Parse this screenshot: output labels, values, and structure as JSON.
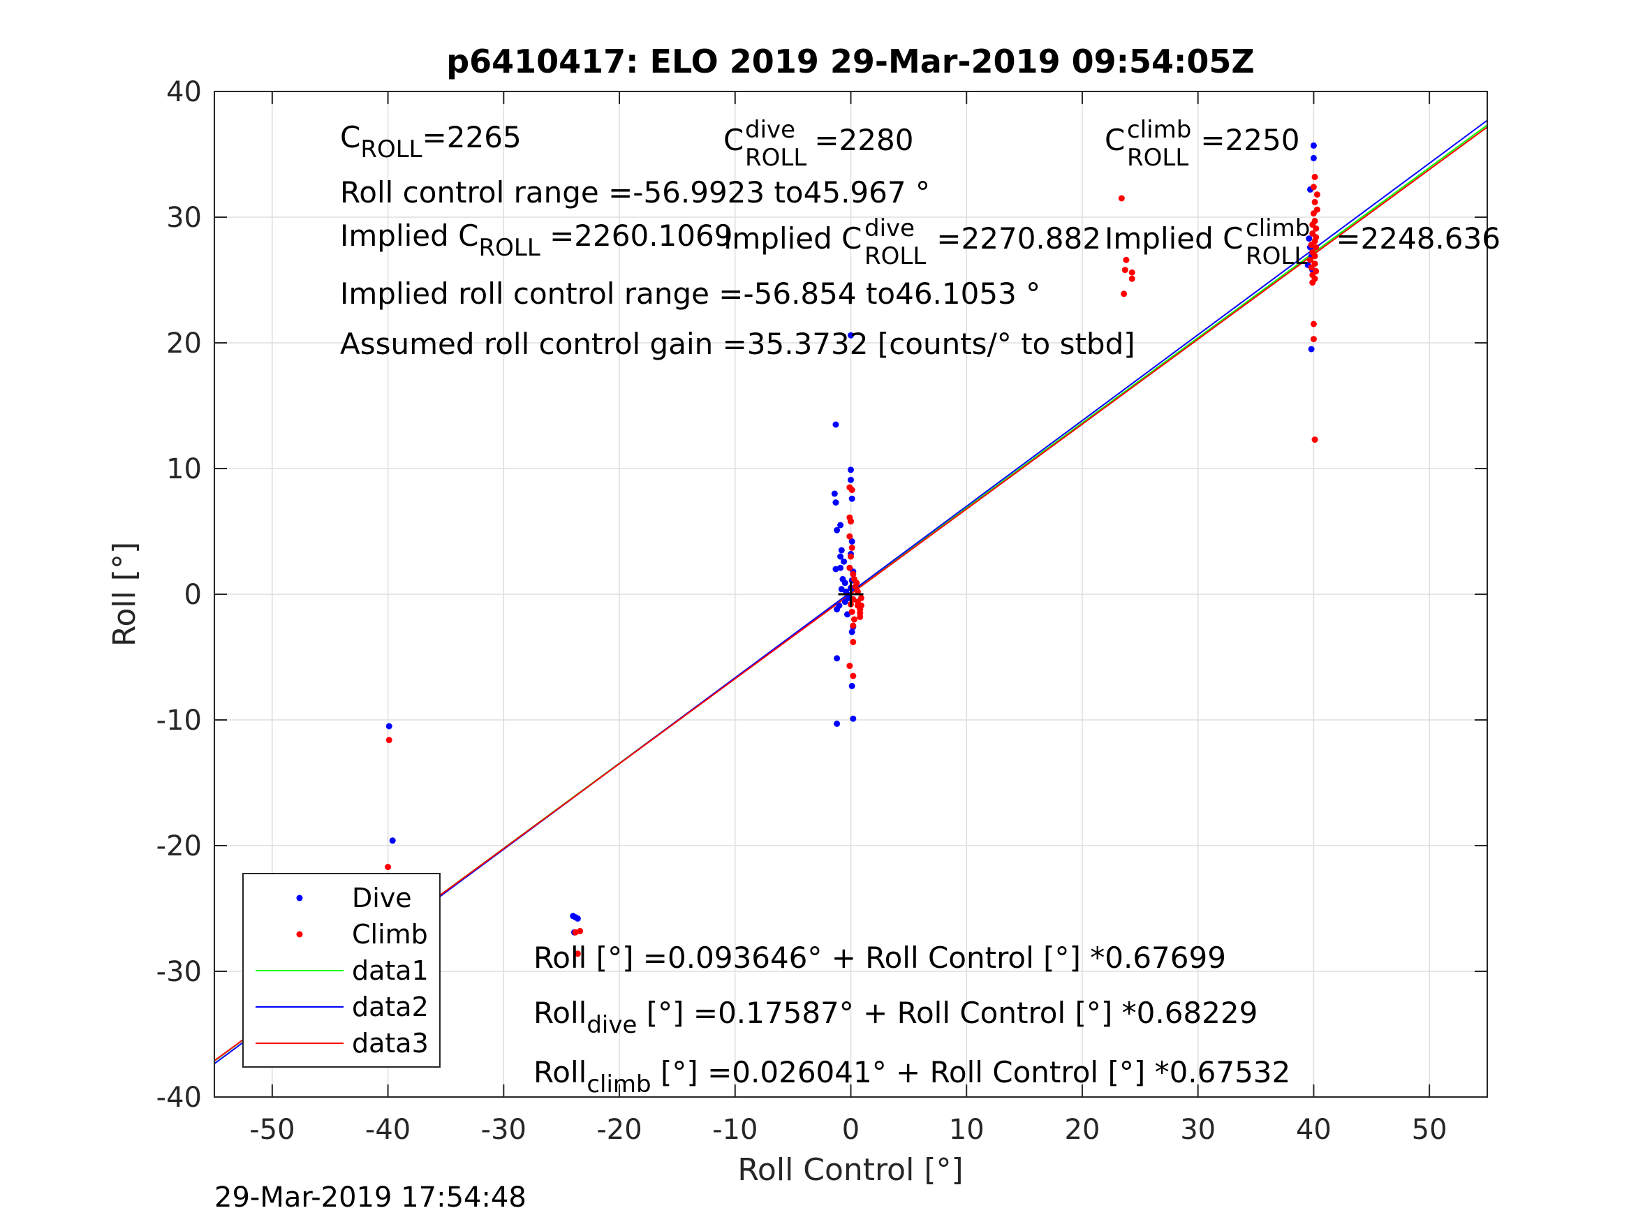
{
  "chart_data": {
    "type": "scatter",
    "title": "p6410417: ELO 2019 29-Mar-2019 09:54:05Z",
    "xlabel": "Roll Control [°]",
    "ylabel": "Roll [°]",
    "xlim": [
      -55,
      55
    ],
    "ylim": [
      -40,
      40
    ],
    "xticks": [
      "-50",
      "-40",
      "-30",
      "-20",
      "-10",
      "0",
      "10",
      "20",
      "30",
      "40",
      "50"
    ],
    "yticks": [
      "-40",
      "-30",
      "-20",
      "-10",
      "0",
      "10",
      "20",
      "30",
      "40"
    ],
    "grid": true,
    "legend": {
      "position": "bottom-left",
      "entries": [
        {
          "label": "Dive",
          "color": "#0000ff",
          "kind": "marker"
        },
        {
          "label": "Climb",
          "color": "#ff0000",
          "kind": "marker"
        },
        {
          "label": "data1",
          "color": "#00ff00",
          "kind": "line"
        },
        {
          "label": "data2",
          "color": "#0000ff",
          "kind": "line"
        },
        {
          "label": "data3",
          "color": "#ff0000",
          "kind": "line"
        }
      ]
    },
    "series": [
      {
        "name": "Dive",
        "kind": "scatter",
        "color": "#0000ff",
        "points": [
          [
            -39.9,
            -10.5
          ],
          [
            -39.6,
            -19.6
          ],
          [
            -39.9,
            -22.6
          ],
          [
            -39.8,
            -24.5
          ],
          [
            -39.7,
            -25.8
          ],
          [
            -39.6,
            -26.1
          ],
          [
            -39.8,
            -26.6
          ],
          [
            -39.6,
            -27.0
          ],
          [
            -39.7,
            -27.4
          ],
          [
            -39.6,
            -27.8
          ],
          [
            -24.0,
            -25.6
          ],
          [
            -23.8,
            -25.7
          ],
          [
            -23.6,
            -25.8
          ],
          [
            -23.9,
            -26.9
          ],
          [
            -1.3,
            13.5
          ],
          [
            -1.4,
            8.0
          ],
          [
            -1.3,
            7.3
          ],
          [
            -0.9,
            5.5
          ],
          [
            -1.2,
            5.1
          ],
          [
            -1.3,
            2.0
          ],
          [
            -0.9,
            2.1
          ],
          [
            -0.9,
            3.0
          ],
          [
            -0.8,
            3.5
          ],
          [
            -0.6,
            2.6
          ],
          [
            -0.7,
            1.2
          ],
          [
            -0.5,
            0.9
          ],
          [
            -0.8,
            0.4
          ],
          [
            -0.4,
            0.2
          ],
          [
            -0.2,
            -0.3
          ],
          [
            -0.5,
            -0.6
          ],
          [
            -1.0,
            -0.9
          ],
          [
            -1.2,
            -1.2
          ],
          [
            -0.3,
            -1.6
          ],
          [
            0.2,
            -2.6
          ],
          [
            0.1,
            -3.0
          ],
          [
            -1.2,
            -5.1
          ],
          [
            -1.2,
            -10.3
          ],
          [
            0.1,
            -7.3
          ],
          [
            0.2,
            -9.9
          ],
          [
            0.0,
            9.9
          ],
          [
            0.0,
            9.1
          ],
          [
            0.1,
            7.6
          ],
          [
            0.0,
            5.8
          ],
          [
            0.1,
            4.2
          ],
          [
            0.0,
            3.2
          ],
          [
            0.2,
            1.8
          ],
          [
            0.1,
            1.1
          ],
          [
            0.0,
            0.5
          ],
          [
            0.2,
            -0.4
          ],
          [
            0.0,
            20.6
          ],
          [
            40.0,
            35.7
          ],
          [
            40.0,
            34.7
          ],
          [
            39.7,
            32.2
          ],
          [
            39.6,
            28.3
          ],
          [
            39.7,
            27.6
          ],
          [
            39.8,
            26.9
          ],
          [
            39.5,
            26.2
          ],
          [
            39.9,
            25.8
          ],
          [
            39.8,
            19.5
          ]
        ]
      },
      {
        "name": "Climb",
        "kind": "scatter",
        "color": "#ff0000",
        "points": [
          [
            -39.9,
            -11.6
          ],
          [
            -40.0,
            -21.7
          ],
          [
            -39.8,
            -23.0
          ],
          [
            -39.7,
            -24.5
          ],
          [
            -39.5,
            -25.2
          ],
          [
            -39.6,
            -26.4
          ],
          [
            -23.8,
            -26.9
          ],
          [
            -23.4,
            -26.8
          ],
          [
            -23.6,
            -28.6
          ],
          [
            -0.1,
            8.5
          ],
          [
            0.1,
            8.3
          ],
          [
            -0.1,
            6.1
          ],
          [
            0.0,
            5.8
          ],
          [
            -0.1,
            4.6
          ],
          [
            0.1,
            3.7
          ],
          [
            0.0,
            3.0
          ],
          [
            -0.1,
            2.1
          ],
          [
            0.2,
            1.6
          ],
          [
            0.3,
            1.2
          ],
          [
            0.4,
            0.6
          ],
          [
            0.6,
            0.2
          ],
          [
            0.2,
            -0.4
          ],
          [
            0.0,
            -0.8
          ],
          [
            0.1,
            -1.4
          ],
          [
            0.3,
            -2.0
          ],
          [
            0.2,
            -2.5
          ],
          [
            0.2,
            -3.8
          ],
          [
            -0.1,
            -5.7
          ],
          [
            0.2,
            -6.5
          ],
          [
            0.6,
            -0.6
          ],
          [
            0.6,
            -0.9
          ],
          [
            0.8,
            -1.2
          ],
          [
            0.8,
            -1.5
          ],
          [
            0.8,
            -1.8
          ],
          [
            0.9,
            -0.3
          ],
          [
            0.9,
            -0.9
          ],
          [
            0.5,
            0.9
          ],
          [
            23.4,
            31.5
          ],
          [
            23.8,
            26.6
          ],
          [
            23.7,
            25.8
          ],
          [
            24.3,
            25.6
          ],
          [
            24.3,
            25.1
          ],
          [
            23.6,
            23.9
          ],
          [
            40.1,
            33.2
          ],
          [
            40.0,
            32.4
          ],
          [
            40.3,
            31.8
          ],
          [
            40.1,
            31.2
          ],
          [
            40.3,
            30.6
          ],
          [
            40.0,
            30.3
          ],
          [
            40.1,
            29.7
          ],
          [
            39.9,
            29.4
          ],
          [
            40.2,
            29.1
          ],
          [
            39.9,
            28.7
          ],
          [
            40.2,
            28.4
          ],
          [
            40.1,
            28.1
          ],
          [
            39.8,
            27.8
          ],
          [
            40.2,
            27.6
          ],
          [
            39.9,
            27.2
          ],
          [
            40.1,
            26.9
          ],
          [
            39.7,
            26.6
          ],
          [
            40.1,
            26.3
          ],
          [
            39.8,
            26.0
          ],
          [
            40.2,
            25.7
          ],
          [
            39.9,
            25.4
          ],
          [
            40.1,
            25.1
          ],
          [
            39.9,
            24.8
          ],
          [
            40.0,
            21.5
          ],
          [
            40.0,
            20.3
          ],
          [
            40.1,
            12.3
          ]
        ]
      },
      {
        "name": "data1",
        "kind": "line",
        "color": "#00ff00",
        "intercept": 0.093646,
        "slope": 0.67699
      },
      {
        "name": "data2",
        "kind": "line",
        "color": "#0000ff",
        "intercept": 0.17587,
        "slope": 0.68229
      },
      {
        "name": "data3",
        "kind": "line",
        "color": "#ff0000",
        "intercept": 0.026041,
        "slope": 0.67532
      }
    ],
    "center_marker": {
      "x": 0,
      "y": 0,
      "symbol": "+",
      "color": "#000000"
    },
    "annotations": {
      "c_roll": {
        "base": "C",
        "sub": "ROLL",
        "value": "=2265"
      },
      "c_roll_dive": {
        "base": "C",
        "sup": "dive",
        "sub": "ROLL",
        "value": " =2280"
      },
      "c_roll_climb": {
        "base": "C",
        "sup": "climb",
        "sub": "ROLL",
        "value": " =2250"
      },
      "roll_control_range": "Roll control range =-56.9923 to45.967 °",
      "implied_c_roll": {
        "base": "Implied C",
        "sub": "ROLL",
        "value": " =2260.1069"
      },
      "implied_c_roll_dive": {
        "base": "Implied C",
        "sup": "dive",
        "sub": "ROLL",
        "value": " =2270.882"
      },
      "implied_c_roll_climb": {
        "base": "Implied C",
        "sup": "climb",
        "sub": "ROLL",
        "value": " =2248.636"
      },
      "implied_roll_control_range": "Implied roll control range =-56.854 to46.1053 °",
      "assumed_gain": "Assumed roll control gain =35.3732 [counts/° to stbd]",
      "fit_all": "Roll [°] =0.093646° + Roll Control [°] *0.67699",
      "fit_dive": {
        "base": "Roll",
        "sub": "dive",
        "value": " [°] =0.17587° + Roll Control [°] *0.68229"
      },
      "fit_climb": {
        "base": "Roll",
        "sub": "climb",
        "value": " [°] =0.026041° + Roll Control [°] *0.67532"
      }
    }
  },
  "footer": {
    "timestamp": "29-Mar-2019 17:54:48"
  }
}
